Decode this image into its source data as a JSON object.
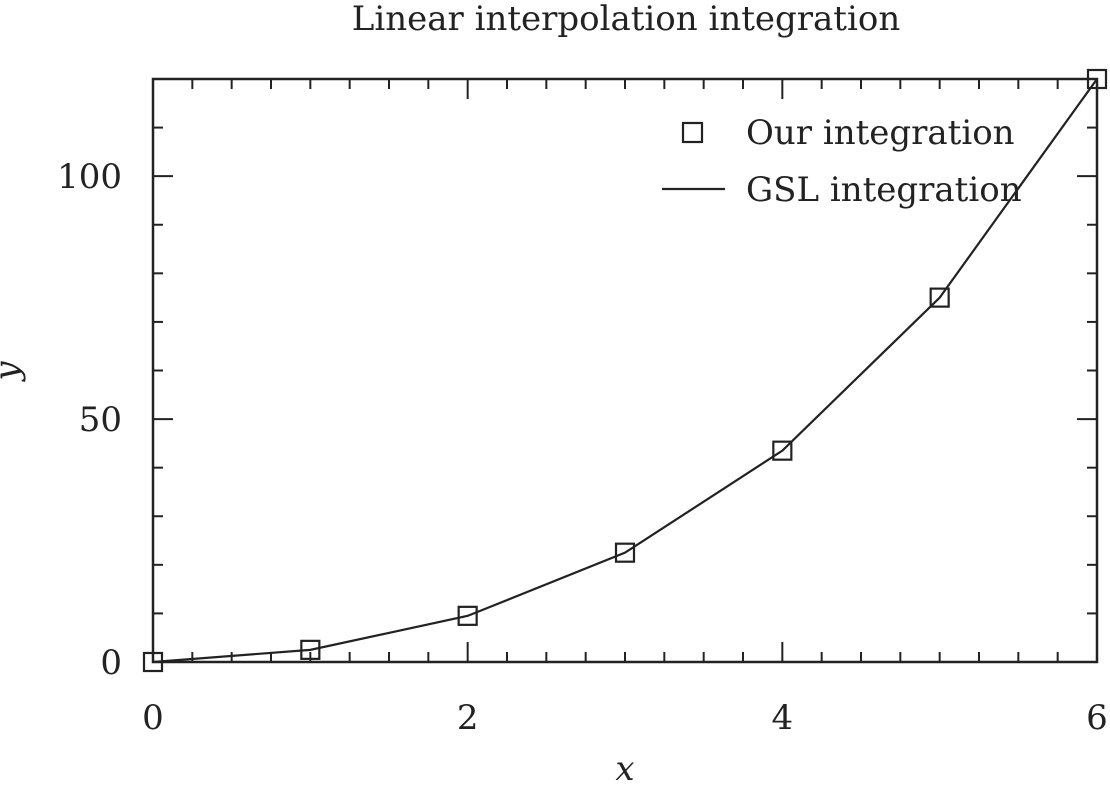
{
  "chart_data": {
    "type": "line",
    "title": "Linear interpolation integration",
    "xlabel": "x",
    "ylabel": "y",
    "xlim": [
      0,
      6
    ],
    "ylim": [
      0,
      120
    ],
    "x_ticks": [
      0,
      2,
      4,
      6
    ],
    "y_ticks": [
      0,
      50,
      100
    ],
    "x_tick_labels": [
      "0",
      "2",
      "4",
      "6"
    ],
    "y_tick_labels": [
      "0",
      "50",
      "100"
    ],
    "grid": false,
    "legend_position": "top-right",
    "series": [
      {
        "name": "Our integration",
        "style": "markers",
        "marker": "square",
        "color": "#222222",
        "x": [
          0,
          1,
          2,
          3,
          4,
          5,
          6
        ],
        "values": [
          0,
          2.5,
          9.5,
          22.5,
          43.5,
          75,
          120
        ]
      },
      {
        "name": "GSL integration",
        "style": "line",
        "color": "#222222",
        "x": [
          0,
          1,
          2,
          3,
          4,
          5,
          6
        ],
        "values": [
          0,
          2.5,
          9.5,
          22.5,
          43.5,
          75,
          120
        ]
      }
    ]
  }
}
